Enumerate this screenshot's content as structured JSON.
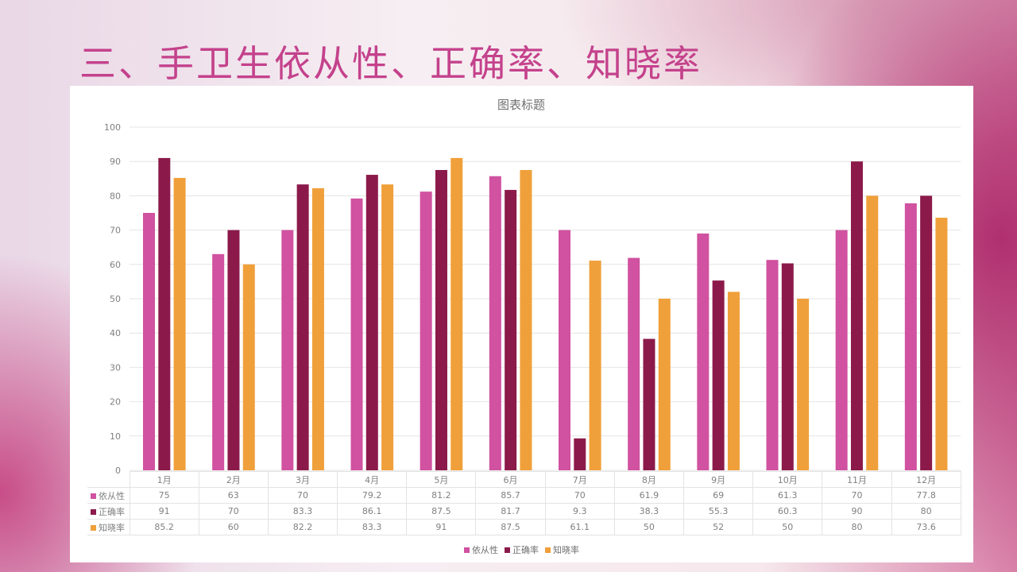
{
  "slide_title": "三、手卫生依从性、正确率、知晓率",
  "chart_data": {
    "type": "bar",
    "title": "图表标题",
    "categories": [
      "1月",
      "2月",
      "3月",
      "4月",
      "5月",
      "6月",
      "7月",
      "8月",
      "9月",
      "10月",
      "11月",
      "12月"
    ],
    "series": [
      {
        "name": "依从性",
        "color": "#d052a0",
        "values": [
          75,
          63,
          70,
          79.2,
          81.2,
          85.7,
          70,
          61.9,
          69,
          61.3,
          70,
          77.8
        ]
      },
      {
        "name": "正确率",
        "color": "#8b1a4a",
        "values": [
          91,
          70,
          83.3,
          86.1,
          87.5,
          81.7,
          9.3,
          38.3,
          55.3,
          60.3,
          90,
          80
        ]
      },
      {
        "name": "知晓率",
        "color": "#f0a03a",
        "values": [
          85.2,
          60,
          82.2,
          83.3,
          91,
          87.5,
          61.1,
          50,
          52,
          50,
          80,
          73.6
        ]
      }
    ],
    "ylim": [
      0,
      100
    ],
    "yticks": [
      "0",
      "10",
      "20",
      "30",
      "40",
      "50",
      "60",
      "70",
      "80",
      "90",
      "100"
    ],
    "grid": true,
    "legend": "bottom",
    "data_table": true
  }
}
